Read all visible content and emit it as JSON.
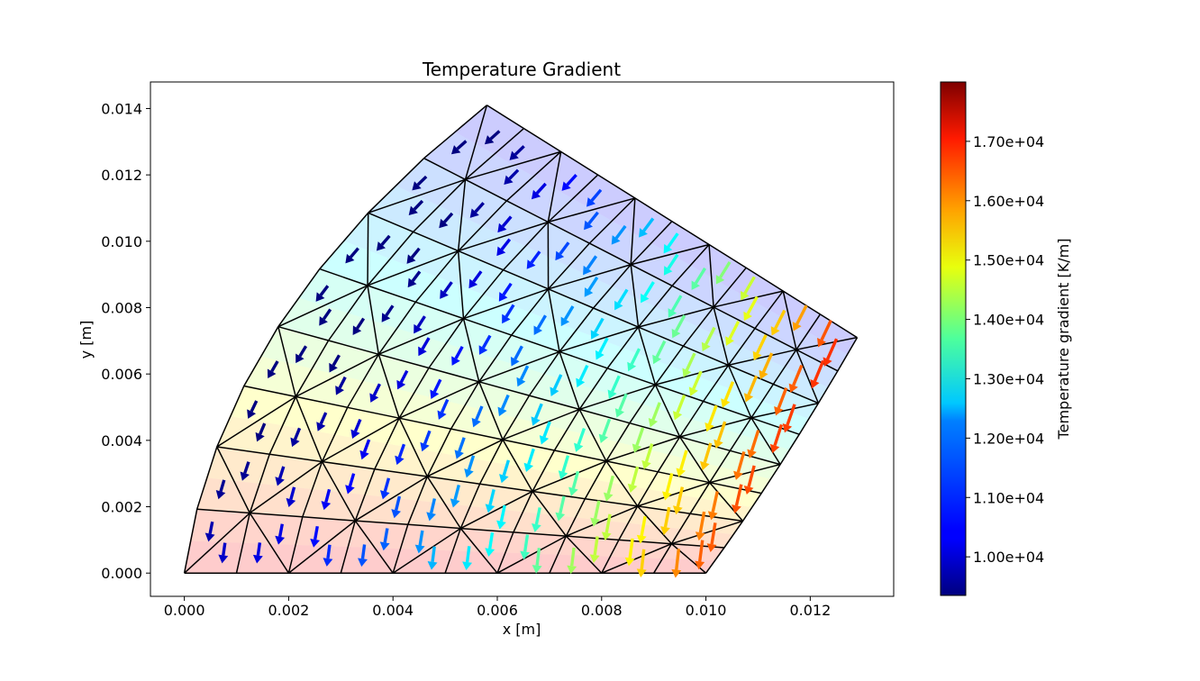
{
  "chart_data": {
    "type": "vector-field",
    "title": "Temperature Gradient",
    "xlabel": "x [m]",
    "ylabel": "y [m]",
    "xlim": [
      -0.00065,
      0.0136
    ],
    "ylim": [
      -0.0007,
      0.0148
    ],
    "xticks": [
      "0.000",
      "0.002",
      "0.004",
      "0.006",
      "0.008",
      "0.010",
      "0.012"
    ],
    "yticks": [
      "0.000",
      "0.002",
      "0.004",
      "0.006",
      "0.008",
      "0.010",
      "0.012",
      "0.014"
    ],
    "grid": false,
    "domain_corners": {
      "bottom_left": [
        0.0,
        0.0
      ],
      "bottom_right": [
        0.01,
        0.0
      ],
      "top_left": [
        0.0058,
        0.0141
      ],
      "top_right": [
        0.0129,
        0.0071
      ]
    },
    "mesh": {
      "radial_divisions": 10,
      "angular_divisions": 8,
      "triangulated": true
    },
    "colorbar": {
      "label": "Temperature gradient [K/m]",
      "colormap": "jet",
      "range": [
        9350,
        18000
      ],
      "ticks": [
        "1.00e+04",
        "1.10e+04",
        "1.20e+04",
        "1.30e+04",
        "1.40e+04",
        "1.50e+04",
        "1.60e+04",
        "1.70e+04"
      ]
    },
    "arrow_magnitude_samples": [
      {
        "x": 0.0005,
        "y": 0.002,
        "value": 10500
      },
      {
        "x": 0.005,
        "y": 0.0125,
        "value": 9600
      },
      {
        "x": 0.006,
        "y": 0.0,
        "value": 13000
      },
      {
        "x": 0.0092,
        "y": 0.0,
        "value": 13600
      },
      {
        "x": 0.01,
        "y": 0.003,
        "value": 16600
      },
      {
        "x": 0.0124,
        "y": 0.0068,
        "value": 18000
      }
    ]
  }
}
